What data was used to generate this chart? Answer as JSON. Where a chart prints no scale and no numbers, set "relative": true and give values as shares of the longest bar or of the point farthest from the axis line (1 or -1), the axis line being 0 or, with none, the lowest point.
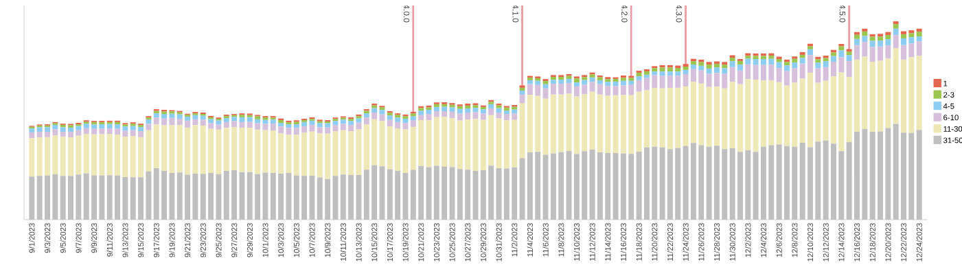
{
  "chart_data": {
    "type": "bar",
    "stacked": true,
    "relative": true,
    "legend": "right",
    "x": [
      "2023-09-01",
      "2023-09-02",
      "2023-09-03",
      "2023-09-04",
      "2023-09-05",
      "2023-09-06",
      "2023-09-07",
      "2023-09-08",
      "2023-09-09",
      "2023-09-10",
      "2023-09-11",
      "2023-09-12",
      "2023-09-13",
      "2023-09-14",
      "2023-09-15",
      "2023-09-16",
      "2023-09-17",
      "2023-09-18",
      "2023-09-19",
      "2023-09-20",
      "2023-09-21",
      "2023-09-22",
      "2023-09-23",
      "2023-09-24",
      "2023-09-25",
      "2023-09-26",
      "2023-09-27",
      "2023-09-28",
      "2023-09-29",
      "2023-09-30",
      "2023-10-01",
      "2023-10-02",
      "2023-10-03",
      "2023-10-04",
      "2023-10-05",
      "2023-10-06",
      "2023-10-07",
      "2023-10-08",
      "2023-10-09",
      "2023-10-10",
      "2023-10-11",
      "2023-10-12",
      "2023-10-13",
      "2023-10-14",
      "2023-10-15",
      "2023-10-16",
      "2023-10-17",
      "2023-10-18",
      "2023-10-19",
      "2023-10-20",
      "2023-10-21",
      "2023-10-22",
      "2023-10-23",
      "2023-10-24",
      "2023-10-25",
      "2023-10-26",
      "2023-10-27",
      "2023-10-28",
      "2023-10-29",
      "2023-10-30",
      "2023-10-31",
      "2023-11-01",
      "2023-11-02",
      "2023-11-03",
      "2023-11-04",
      "2023-11-05",
      "2023-11-06",
      "2023-11-07",
      "2023-11-08",
      "2023-11-09",
      "2023-11-10",
      "2023-11-11",
      "2023-11-12",
      "2023-11-13",
      "2023-11-14",
      "2023-11-15",
      "2023-11-16",
      "2023-11-17",
      "2023-11-18",
      "2023-11-19",
      "2023-11-20",
      "2023-11-21",
      "2023-11-22",
      "2023-11-23",
      "2023-11-24",
      "2023-11-25",
      "2023-11-26",
      "2023-11-27",
      "2023-11-28",
      "2023-11-29",
      "2023-11-30",
      "2023-12-01",
      "2023-12-02",
      "2023-12-03",
      "2023-12-04",
      "2023-12-05",
      "2023-12-06",
      "2023-12-07",
      "2023-12-08",
      "2023-12-09",
      "2023-12-10",
      "2023-12-11",
      "2023-12-12",
      "2023-12-13",
      "2023-12-14",
      "2023-12-15",
      "2023-12-16",
      "2023-12-17",
      "2023-12-18",
      "2023-12-19",
      "2023-12-20",
      "2023-12-21",
      "2023-12-22",
      "2023-12-23",
      "2023-12-24"
    ],
    "xlim": [
      "2023-08-31",
      "2023-12-25"
    ],
    "xticks": [
      {
        "value": "2023-09-01",
        "label": "9/1/2023"
      },
      {
        "value": "2023-09-03",
        "label": "9/3/2023"
      },
      {
        "value": "2023-09-05",
        "label": "9/5/2023"
      },
      {
        "value": "2023-09-07",
        "label": "9/7/2023"
      },
      {
        "value": "2023-09-09",
        "label": "9/9/2023"
      },
      {
        "value": "2023-09-11",
        "label": "9/11/2023"
      },
      {
        "value": "2023-09-13",
        "label": "9/13/2023"
      },
      {
        "value": "2023-09-15",
        "label": "9/15/2023"
      },
      {
        "value": "2023-09-17",
        "label": "9/17/2023"
      },
      {
        "value": "2023-09-19",
        "label": "9/19/2023"
      },
      {
        "value": "2023-09-21",
        "label": "9/21/2023"
      },
      {
        "value": "2023-09-23",
        "label": "9/23/2023"
      },
      {
        "value": "2023-09-25",
        "label": "9/25/2023"
      },
      {
        "value": "2023-09-27",
        "label": "9/27/2023"
      },
      {
        "value": "2023-09-29",
        "label": "9/29/2023"
      },
      {
        "value": "2023-10-01",
        "label": "10/1/2023"
      },
      {
        "value": "2023-10-03",
        "label": "10/3/2023"
      },
      {
        "value": "2023-10-05",
        "label": "10/5/2023"
      },
      {
        "value": "2023-10-07",
        "label": "10/7/2023"
      },
      {
        "value": "2023-10-09",
        "label": "10/9/2023"
      },
      {
        "value": "2023-10-11",
        "label": "10/11/2023"
      },
      {
        "value": "2023-10-13",
        "label": "10/13/2023"
      },
      {
        "value": "2023-10-15",
        "label": "10/15/2023"
      },
      {
        "value": "2023-10-17",
        "label": "10/17/2023"
      },
      {
        "value": "2023-10-19",
        "label": "10/19/2023"
      },
      {
        "value": "2023-10-21",
        "label": "10/21/2023"
      },
      {
        "value": "2023-10-23",
        "label": "10/23/2023"
      },
      {
        "value": "2023-10-25",
        "label": "10/25/2023"
      },
      {
        "value": "2023-10-27",
        "label": "10/27/2023"
      },
      {
        "value": "2023-10-29",
        "label": "10/29/2023"
      },
      {
        "value": "2023-10-31",
        "label": "10/31/2023"
      },
      {
        "value": "2023-11-02",
        "label": "11/2/2023"
      },
      {
        "value": "2023-11-04",
        "label": "11/4/2023"
      },
      {
        "value": "2023-11-06",
        "label": "11/6/2023"
      },
      {
        "value": "2023-11-08",
        "label": "11/8/2023"
      },
      {
        "value": "2023-11-10",
        "label": "11/10/2023"
      },
      {
        "value": "2023-11-12",
        "label": "11/12/2023"
      },
      {
        "value": "2023-11-14",
        "label": "11/14/2023"
      },
      {
        "value": "2023-11-16",
        "label": "11/16/2023"
      },
      {
        "value": "2023-11-18",
        "label": "11/18/2023"
      },
      {
        "value": "2023-11-20",
        "label": "11/20/2023"
      },
      {
        "value": "2023-11-22",
        "label": "11/22/2023"
      },
      {
        "value": "2023-11-24",
        "label": "11/24/2023"
      },
      {
        "value": "2023-11-26",
        "label": "11/26/2023"
      },
      {
        "value": "2023-11-28",
        "label": "11/28/2023"
      },
      {
        "value": "2023-11-30",
        "label": "11/30/2023"
      },
      {
        "value": "2023-12-02",
        "label": "12/2/2023"
      },
      {
        "value": "2023-12-04",
        "label": "12/4/2023"
      },
      {
        "value": "2023-12-06",
        "label": "12/6/2023"
      },
      {
        "value": "2023-12-08",
        "label": "12/8/2023"
      },
      {
        "value": "2023-12-10",
        "label": "12/10/2023"
      },
      {
        "value": "2023-12-12",
        "label": "12/12/2023"
      },
      {
        "value": "2023-12-14",
        "label": "12/14/2023"
      },
      {
        "value": "2023-12-16",
        "label": "12/16/2023"
      },
      {
        "value": "2023-12-18",
        "label": "12/18/2023"
      },
      {
        "value": "2023-12-20",
        "label": "12/20/2023"
      },
      {
        "value": "2023-12-22",
        "label": "12/22/2023"
      },
      {
        "value": "2023-12-24",
        "label": "12/24/2023"
      }
    ],
    "ref_lines": [
      {
        "axis": "x",
        "value": "2023-10-20",
        "label": "4.0.0",
        "color": "#eb9ea6"
      },
      {
        "axis": "x",
        "value": "2023-11-03",
        "label": "4.1.0",
        "color": "#eb9ea6"
      },
      {
        "axis": "x",
        "value": "2023-11-17",
        "label": "4.2.0",
        "color": "#eb9ea6"
      },
      {
        "axis": "x",
        "value": "2023-11-24",
        "label": "4.3.0",
        "color": "#eb9ea6"
      },
      {
        "axis": "x",
        "value": "2023-12-15",
        "label": "4.5.0",
        "color": "#eb9ea6"
      }
    ],
    "series": [
      {
        "name": "31-50",
        "color": "#c0bfc0",
        "values": [
          0.217,
          0.221,
          0.222,
          0.229,
          0.221,
          0.221,
          0.228,
          0.234,
          0.223,
          0.223,
          0.224,
          0.222,
          0.215,
          0.214,
          0.214,
          0.243,
          0.26,
          0.246,
          0.235,
          0.238,
          0.227,
          0.232,
          0.231,
          0.235,
          0.229,
          0.246,
          0.249,
          0.24,
          0.24,
          0.229,
          0.237,
          0.235,
          0.232,
          0.235,
          0.223,
          0.221,
          0.222,
          0.213,
          0.205,
          0.221,
          0.228,
          0.225,
          0.225,
          0.252,
          0.274,
          0.269,
          0.254,
          0.246,
          0.235,
          0.251,
          0.271,
          0.265,
          0.272,
          0.267,
          0.265,
          0.255,
          0.252,
          0.246,
          0.249,
          0.273,
          0.26,
          0.258,
          0.264,
          0.31,
          0.339,
          0.342,
          0.327,
          0.334,
          0.34,
          0.346,
          0.331,
          0.345,
          0.353,
          0.339,
          0.336,
          0.336,
          0.334,
          0.331,
          0.343,
          0.364,
          0.368,
          0.364,
          0.356,
          0.362,
          0.371,
          0.387,
          0.376,
          0.368,
          0.373,
          0.356,
          0.36,
          0.342,
          0.35,
          0.342,
          0.368,
          0.376,
          0.379,
          0.371,
          0.368,
          0.388,
          0.365,
          0.394,
          0.399,
          0.383,
          0.345,
          0.391,
          0.443,
          0.457,
          0.443,
          0.445,
          0.462,
          0.483,
          0.439,
          0.437,
          0.453
        ]
      },
      {
        "name": "11-30",
        "color": "#ede8b5",
        "values": [
          0.194,
          0.194,
          0.194,
          0.197,
          0.197,
          0.194,
          0.195,
          0.198,
          0.207,
          0.208,
          0.208,
          0.207,
          0.203,
          0.207,
          0.202,
          0.208,
          0.22,
          0.23,
          0.242,
          0.239,
          0.237,
          0.245,
          0.243,
          0.223,
          0.225,
          0.217,
          0.218,
          0.224,
          0.223,
          0.225,
          0.214,
          0.215,
          0.203,
          0.193,
          0.205,
          0.218,
          0.222,
          0.222,
          0.229,
          0.224,
          0.223,
          0.221,
          0.23,
          0.229,
          0.232,
          0.228,
          0.217,
          0.214,
          0.22,
          0.217,
          0.231,
          0.236,
          0.245,
          0.252,
          0.247,
          0.245,
          0.253,
          0.262,
          0.254,
          0.254,
          0.25,
          0.243,
          0.239,
          0.277,
          0.291,
          0.282,
          0.283,
          0.297,
          0.291,
          0.289,
          0.29,
          0.287,
          0.292,
          0.292,
          0.289,
          0.291,
          0.294,
          0.297,
          0.302,
          0.289,
          0.297,
          0.298,
          0.309,
          0.303,
          0.301,
          0.308,
          0.31,
          0.301,
          0.298,
          0.306,
          0.335,
          0.341,
          0.358,
          0.364,
          0.335,
          0.326,
          0.314,
          0.305,
          0.323,
          0.323,
          0.376,
          0.296,
          0.301,
          0.34,
          0.397,
          0.329,
          0.364,
          0.365,
          0.353,
          0.356,
          0.35,
          0.382,
          0.368,
          0.382,
          0.373
        ]
      },
      {
        "name": "6-10",
        "color": "#d7c0dc",
        "values": [
          0.029,
          0.028,
          0.027,
          0.029,
          0.025,
          0.028,
          0.028,
          0.029,
          0.028,
          0.028,
          0.028,
          0.03,
          0.03,
          0.03,
          0.03,
          0.032,
          0.035,
          0.034,
          0.036,
          0.032,
          0.035,
          0.029,
          0.03,
          0.029,
          0.025,
          0.029,
          0.03,
          0.028,
          0.03,
          0.032,
          0.032,
          0.034,
          0.035,
          0.035,
          0.035,
          0.032,
          0.034,
          0.031,
          0.031,
          0.032,
          0.032,
          0.031,
          0.034,
          0.034,
          0.034,
          0.034,
          0.032,
          0.032,
          0.032,
          0.032,
          0.025,
          0.032,
          0.03,
          0.028,
          0.032,
          0.035,
          0.035,
          0.034,
          0.032,
          0.034,
          0.03,
          0.032,
          0.032,
          0.044,
          0.053,
          0.055,
          0.052,
          0.054,
          0.054,
          0.054,
          0.051,
          0.049,
          0.05,
          0.052,
          0.049,
          0.047,
          0.049,
          0.052,
          0.058,
          0.061,
          0.064,
          0.064,
          0.061,
          0.061,
          0.062,
          0.064,
          0.067,
          0.066,
          0.069,
          0.073,
          0.074,
          0.069,
          0.075,
          0.074,
          0.077,
          0.079,
          0.071,
          0.073,
          0.073,
          0.076,
          0.089,
          0.073,
          0.069,
          0.073,
          0.077,
          0.079,
          0.073,
          0.074,
          0.075,
          0.072,
          0.067,
          0.066,
          0.073,
          0.069,
          0.073
        ]
      },
      {
        "name": "4-5",
        "color": "#8ecdf2",
        "values": [
          0.02,
          0.023,
          0.023,
          0.023,
          0.023,
          0.021,
          0.021,
          0.023,
          0.022,
          0.022,
          0.022,
          0.021,
          0.022,
          0.021,
          0.021,
          0.022,
          0.021,
          0.023,
          0.021,
          0.022,
          0.02,
          0.021,
          0.02,
          0.02,
          0.021,
          0.02,
          0.021,
          0.024,
          0.024,
          0.02,
          0.02,
          0.02,
          0.018,
          0.018,
          0.018,
          0.021,
          0.021,
          0.021,
          0.021,
          0.021,
          0.021,
          0.021,
          0.021,
          0.021,
          0.022,
          0.022,
          0.022,
          0.022,
          0.022,
          0.021,
          0.022,
          0.021,
          0.021,
          0.022,
          0.022,
          0.023,
          0.021,
          0.021,
          0.021,
          0.021,
          0.022,
          0.017,
          0.02,
          0.02,
          0.02,
          0.021,
          0.021,
          0.02,
          0.021,
          0.021,
          0.02,
          0.023,
          0.022,
          0.02,
          0.021,
          0.022,
          0.023,
          0.02,
          0.02,
          0.017,
          0.018,
          0.021,
          0.021,
          0.021,
          0.021,
          0.023,
          0.023,
          0.027,
          0.028,
          0.029,
          0.03,
          0.03,
          0.029,
          0.03,
          0.03,
          0.03,
          0.03,
          0.029,
          0.029,
          0.028,
          0.029,
          0.029,
          0.03,
          0.029,
          0.035,
          0.031,
          0.031,
          0.03,
          0.031,
          0.03,
          0.031,
          0.032,
          0.034,
          0.032,
          0.025
        ]
      },
      {
        "name": "2-3",
        "color": "#9ac650",
        "values": [
          0.008,
          0.009,
          0.009,
          0.008,
          0.012,
          0.012,
          0.009,
          0.009,
          0.012,
          0.01,
          0.01,
          0.012,
          0.01,
          0.012,
          0.01,
          0.01,
          0.012,
          0.012,
          0.012,
          0.01,
          0.009,
          0.009,
          0.009,
          0.009,
          0.009,
          0.01,
          0.009,
          0.012,
          0.01,
          0.015,
          0.012,
          0.01,
          0.014,
          0.01,
          0.012,
          0.01,
          0.009,
          0.009,
          0.009,
          0.01,
          0.01,
          0.01,
          0.012,
          0.013,
          0.014,
          0.013,
          0.014,
          0.014,
          0.013,
          0.014,
          0.014,
          0.012,
          0.014,
          0.013,
          0.013,
          0.014,
          0.014,
          0.014,
          0.012,
          0.012,
          0.014,
          0.015,
          0.014,
          0.014,
          0.013,
          0.013,
          0.016,
          0.015,
          0.014,
          0.015,
          0.02,
          0.015,
          0.015,
          0.015,
          0.014,
          0.014,
          0.015,
          0.015,
          0.018,
          0.017,
          0.017,
          0.02,
          0.02,
          0.018,
          0.017,
          0.017,
          0.018,
          0.02,
          0.018,
          0.018,
          0.018,
          0.018,
          0.014,
          0.016,
          0.016,
          0.016,
          0.016,
          0.017,
          0.018,
          0.016,
          0.015,
          0.017,
          0.016,
          0.018,
          0.02,
          0.017,
          0.021,
          0.023,
          0.021,
          0.02,
          0.021,
          0.023,
          0.021,
          0.02,
          0.024
        ]
      },
      {
        "name": "1",
        "color": "#e5664e",
        "values": [
          0.005,
          0.005,
          0.006,
          0.006,
          0.006,
          0.007,
          0.007,
          0.008,
          0.006,
          0.007,
          0.007,
          0.007,
          0.007,
          0.007,
          0.007,
          0.007,
          0.009,
          0.009,
          0.006,
          0.007,
          0.006,
          0.007,
          0.007,
          0.007,
          0.006,
          0.007,
          0.006,
          0.008,
          0.008,
          0.007,
          0.007,
          0.008,
          0.008,
          0.008,
          0.008,
          0.007,
          0.008,
          0.008,
          0.007,
          0.007,
          0.007,
          0.008,
          0.008,
          0.008,
          0.009,
          0.008,
          0.008,
          0.008,
          0.008,
          0.009,
          0.009,
          0.009,
          0.009,
          0.01,
          0.009,
          0.009,
          0.01,
          0.01,
          0.008,
          0.009,
          0.009,
          0.008,
          0.009,
          0.012,
          0.009,
          0.009,
          0.01,
          0.009,
          0.009,
          0.009,
          0.01,
          0.01,
          0.01,
          0.009,
          0.01,
          0.008,
          0.012,
          0.01,
          0.01,
          0.01,
          0.01,
          0.012,
          0.012,
          0.012,
          0.013,
          0.012,
          0.013,
          0.013,
          0.012,
          0.013,
          0.012,
          0.01,
          0.013,
          0.012,
          0.012,
          0.012,
          0.012,
          0.012,
          0.012,
          0.014,
          0.013,
          0.012,
          0.012,
          0.013,
          0.012,
          0.013,
          0.014,
          0.014,
          0.012,
          0.014,
          0.015,
          0.014,
          0.015,
          0.015,
          0.015
        ]
      }
    ]
  }
}
